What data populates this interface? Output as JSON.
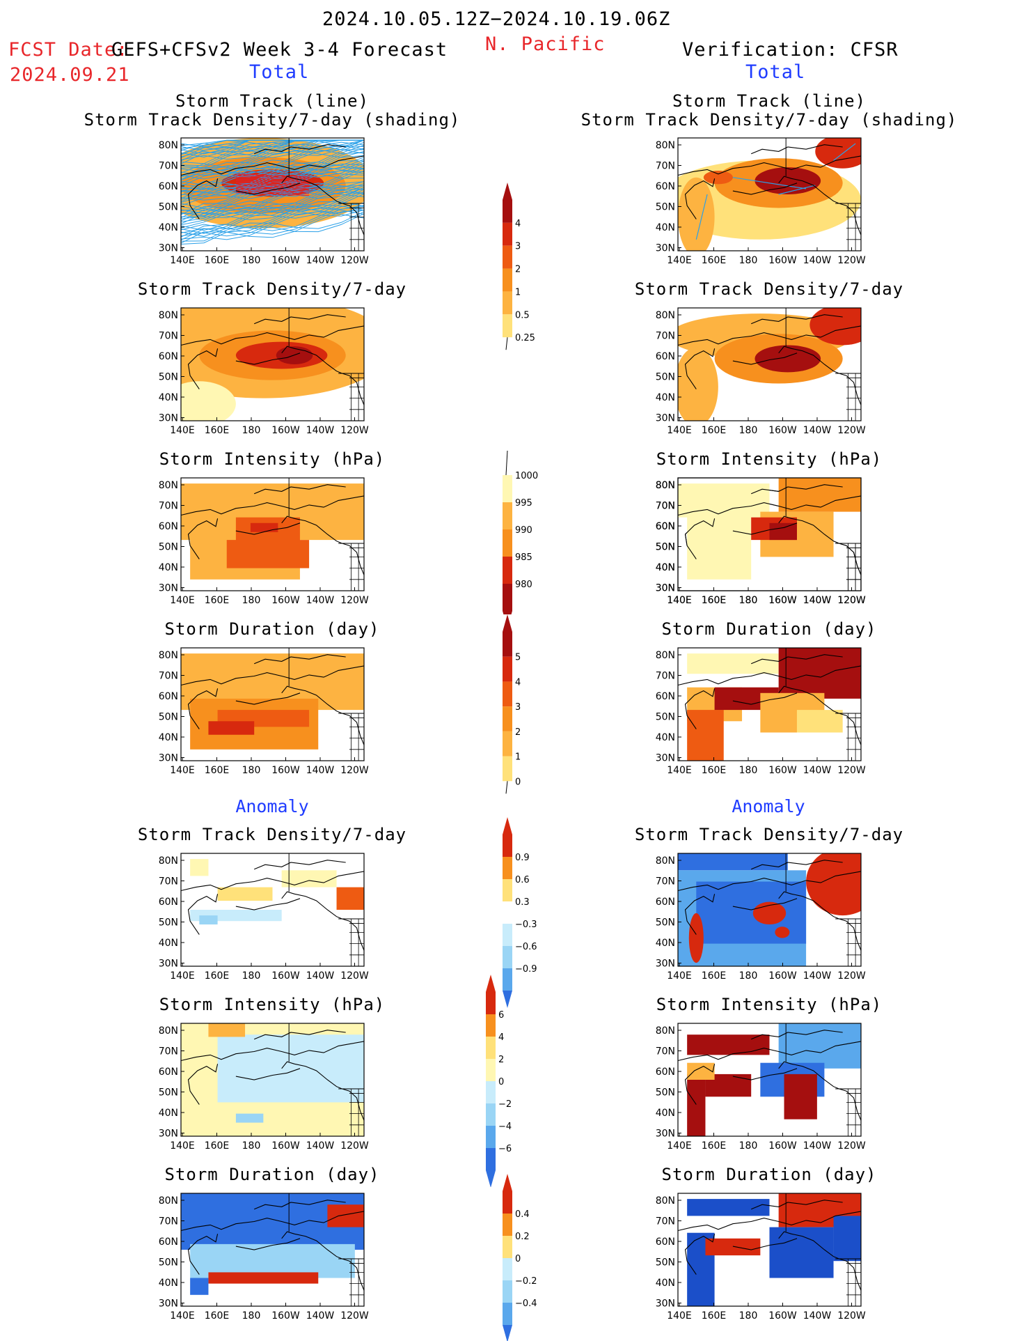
{
  "header": {
    "date_range": "2024.10.05.12Z−2024.10.19.06Z",
    "fcst_label": "FCST Date:",
    "fcst_date": "2024.09.21",
    "forecast_title": "GEFS+CFSv2 Week 3-4 Forecast",
    "region": "N. Pacific",
    "verification": "Verification: CFSR"
  },
  "sections": {
    "total": "Total",
    "anomaly": "Anomaly"
  },
  "panel_titles": {
    "track_line": "Storm Track (line)",
    "track_shading": "Storm Track Density/7-day (shading)",
    "density": "Storm Track Density/7-day",
    "intensity": "Storm Intensity (hPa)",
    "duration": "Storm Duration (day)"
  },
  "axes": {
    "lat": [
      "80N",
      "70N",
      "60N",
      "50N",
      "40N",
      "30N"
    ],
    "lon": [
      "140E",
      "160E",
      "180",
      "160W",
      "140W",
      "120W"
    ]
  },
  "colorbars": {
    "density_total": [
      "4",
      "3",
      "2",
      "1",
      "0.5",
      "0.25"
    ],
    "intensity_total": [
      "1000",
      "995",
      "990",
      "985",
      "980"
    ],
    "duration_total": [
      "5",
      "4",
      "3",
      "2",
      "1",
      "0"
    ],
    "density_anom": [
      "0.9",
      "0.6",
      "0.3",
      "−0.3",
      "−0.6",
      "−0.9"
    ],
    "intensity_anom": [
      "6",
      "4",
      "2",
      "0",
      "−2",
      "−4",
      "−6"
    ],
    "duration_anom": [
      "0.4",
      "0.2",
      "0",
      "−0.2",
      "−0.4"
    ]
  },
  "colors": {
    "warm": [
      "#fff7b3",
      "#ffe17a",
      "#fdb341",
      "#f7901e",
      "#ee5b12",
      "#d7290e",
      "#a50f0f"
    ],
    "cool": [
      "#c8ecfb",
      "#9ad5f5",
      "#5aa8ec",
      "#2f6fe0",
      "#1b4fc9"
    ],
    "track": "#2aa0e8",
    "track_red": "#e0203a"
  }
}
